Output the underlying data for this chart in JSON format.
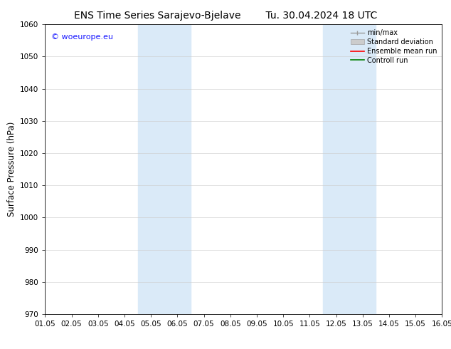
{
  "title_left": "ENS Time Series Sarajevo-Bjelave",
  "title_right": "Tu. 30.04.2024 18 UTC",
  "ylabel": "Surface Pressure (hPa)",
  "ylim": [
    970,
    1060
  ],
  "yticks": [
    970,
    980,
    990,
    1000,
    1010,
    1020,
    1030,
    1040,
    1050,
    1060
  ],
  "xtick_labels": [
    "01.05",
    "02.05",
    "03.05",
    "04.05",
    "05.05",
    "06.05",
    "07.05",
    "08.05",
    "09.05",
    "10.05",
    "11.05",
    "12.05",
    "13.05",
    "14.05",
    "15.05",
    "16.05"
  ],
  "xlim": [
    0,
    15
  ],
  "shaded_bands": [
    {
      "x_start": 3.5,
      "x_end": 5.5,
      "color": "#daeaf8"
    },
    {
      "x_start": 10.5,
      "x_end": 12.5,
      "color": "#daeaf8"
    }
  ],
  "bg_color": "#ffffff",
  "plot_bg_color": "#ffffff",
  "watermark_text": "© woeurope.eu",
  "watermark_color": "#1a1aff",
  "legend_entries": [
    {
      "label": "min/max",
      "color": "#999999",
      "lw": 1.0,
      "style": "minmax"
    },
    {
      "label": "Standard deviation",
      "color": "#cccccc",
      "lw": 5,
      "style": "band"
    },
    {
      "label": "Ensemble mean run",
      "color": "#ff0000",
      "lw": 1.2,
      "style": "line"
    },
    {
      "label": "Controll run",
      "color": "#008000",
      "lw": 1.2,
      "style": "line"
    }
  ],
  "title_fontsize": 10,
  "tick_fontsize": 7.5,
  "ylabel_fontsize": 8.5,
  "watermark_fontsize": 8,
  "legend_fontsize": 7
}
